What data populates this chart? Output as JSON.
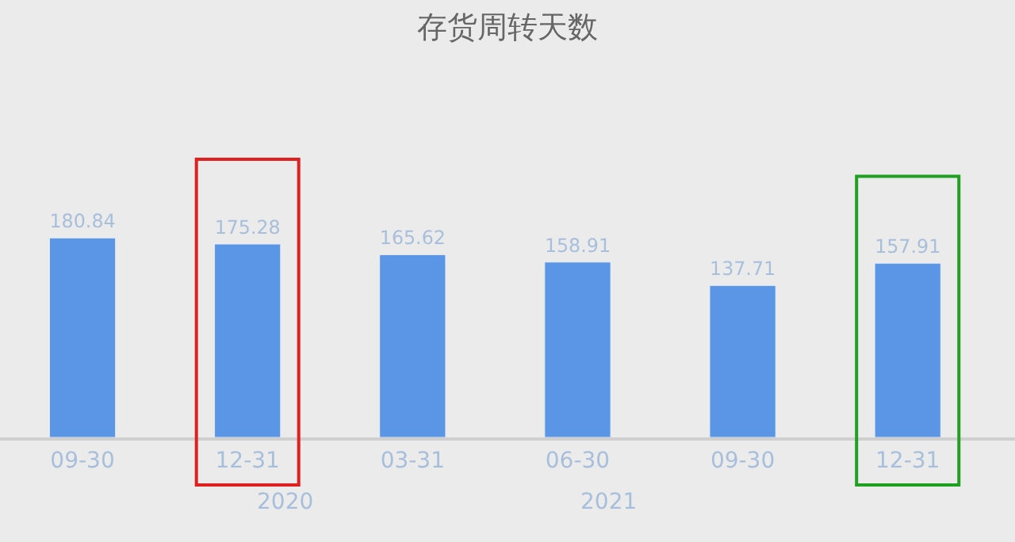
{
  "chart_data": {
    "type": "bar",
    "title": "存货周转天数",
    "categories": [
      "09-30",
      "12-31",
      "03-31",
      "06-30",
      "09-30",
      "12-31"
    ],
    "values": [
      180.84,
      175.28,
      165.62,
      158.91,
      137.71,
      157.91
    ],
    "color": "#5b96e6",
    "data_labels": true,
    "tick_labels": "x",
    "annotations": [
      "2020",
      "2021"
    ]
  }
}
